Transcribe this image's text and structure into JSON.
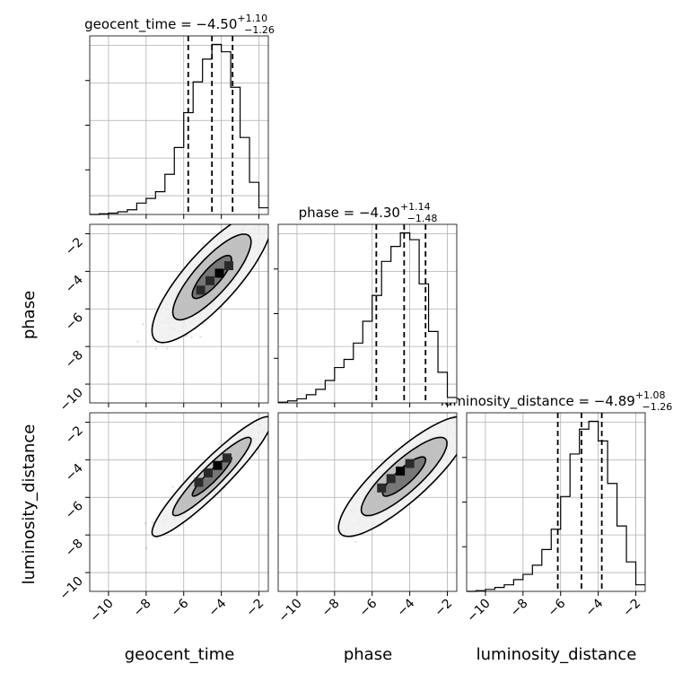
{
  "chart_data": {
    "type": "corner",
    "parameters": [
      "geocent_time",
      "phase",
      "luminosity_distance"
    ],
    "axis_range": [
      -11,
      -1.5
    ],
    "tick_values": [
      -10,
      -8,
      -6,
      -4,
      -2
    ],
    "tick_labels": [
      "−10",
      "−8",
      "−6",
      "−4",
      "−2"
    ],
    "grid": true,
    "titles": [
      {
        "param": "geocent_time",
        "prefix": "geocent_time = −4.50",
        "sup": "+1.10",
        "sub": "−1.26"
      },
      {
        "param": "phase",
        "prefix": "phase = −4.30",
        "sup": "+1.14",
        "sub": "−1.48"
      },
      {
        "param": "luminosity_distance",
        "prefix": "luminosity_distance = −4.89",
        "sup": "+1.08",
        "sub": "−1.26"
      }
    ],
    "xlabels": [
      "geocent_time",
      "phase",
      "luminosity_distance"
    ],
    "ylabels": [
      "",
      "phase",
      "luminosity_distance"
    ],
    "histograms": [
      {
        "param": "geocent_time",
        "quantiles": [
          -5.76,
          -4.5,
          -3.4
        ],
        "bin_edges": [
          -11,
          -10.5,
          -10,
          -9.5,
          -9,
          -8.5,
          -8,
          -7.5,
          -7,
          -6.5,
          -6,
          -5.5,
          -5,
          -4.5,
          -4,
          -3.5,
          -3,
          -2.5,
          -2,
          -1.5
        ],
        "counts": [
          0,
          1,
          2,
          4,
          7,
          17,
          24,
          34,
          60,
          100,
          152,
          198,
          232,
          254,
          243,
          190,
          115,
          48,
          10
        ]
      },
      {
        "param": "phase",
        "quantiles": [
          -5.78,
          -4.3,
          -3.16
        ],
        "bin_edges": [
          -11,
          -10.5,
          -10,
          -9.5,
          -9,
          -8.5,
          -8,
          -7.5,
          -7,
          -6.5,
          -6,
          -5.5,
          -5,
          -4.5,
          -4,
          -3.5,
          -3,
          -2.5,
          -2,
          -1.5
        ],
        "counts": [
          1,
          3,
          6,
          12,
          20,
          33,
          52,
          64,
          88,
          120,
          158,
          208,
          230,
          250,
          240,
          175,
          105,
          45,
          8
        ]
      },
      {
        "param": "luminosity_distance",
        "quantiles": [
          -6.15,
          -4.89,
          -3.81
        ],
        "bin_edges": [
          -11,
          -10.5,
          -10,
          -9.5,
          -9,
          -8.5,
          -8,
          -7.5,
          -7,
          -6.5,
          -6,
          -5.5,
          -5,
          -4.5,
          -4,
          -3.5,
          -3,
          -2.5,
          -2,
          -1.5
        ],
        "counts": [
          0,
          1,
          3,
          6,
          10,
          18,
          26,
          40,
          64,
          95,
          145,
          210,
          248,
          260,
          230,
          165,
          100,
          45,
          10
        ]
      }
    ],
    "scatter_2d": [
      {
        "x_param": "geocent_time",
        "y_param": "phase",
        "mean": [
          -4.5,
          -4.3
        ],
        "sigma": [
          1.05,
          1.15
        ],
        "correlation": 0.82,
        "peak": [
          -4.1,
          -4.1
        ]
      },
      {
        "x_param": "geocent_time",
        "y_param": "luminosity_distance",
        "mean": [
          -4.5,
          -4.89
        ],
        "sigma": [
          1.05,
          1.05
        ],
        "correlation": 0.93,
        "peak": [
          -4.2,
          -4.3
        ]
      },
      {
        "x_param": "phase",
        "y_param": "luminosity_distance",
        "mean": [
          -4.3,
          -4.89
        ],
        "sigma": [
          1.15,
          1.05
        ],
        "correlation": 0.85,
        "peak": [
          -4.5,
          -4.6
        ]
      }
    ],
    "contour_levels": [
      0.39,
      0.86,
      0.99
    ]
  }
}
